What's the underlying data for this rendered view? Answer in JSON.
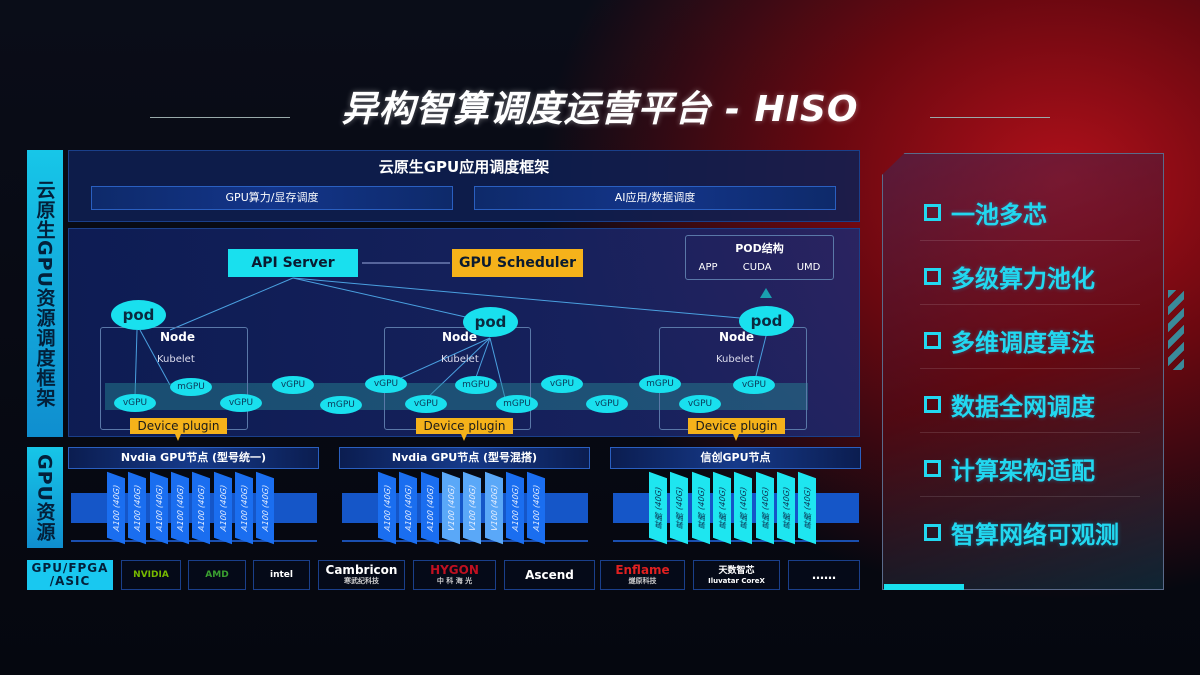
{
  "title": "异构智算调度运营平台 - HISO",
  "side_labels": {
    "framework": "云原生GPU资源调度框架",
    "resources": "GPU资源",
    "chips": "GPU/FPGA /ASIC"
  },
  "framework": {
    "title": "云原生GPU应用调度框架",
    "bars": [
      "GPU算力/显存调度",
      "AI应用/数据调度"
    ]
  },
  "diagram": {
    "api_server": "API Server",
    "gpu_scheduler": "GPU Scheduler",
    "pod_structure": {
      "title": "POD结构",
      "items": [
        "APP",
        "CUDA",
        "UMD"
      ]
    },
    "pod": "pod",
    "node": "Node",
    "kubelet": "Kubelet",
    "device_plugin": "Device plugin",
    "gpus": [
      "vGPU",
      "mGPU",
      "vGPU",
      "vGPU",
      "mGPU",
      "vGPU",
      "vGPU",
      "mGPU",
      "mGPU",
      "vGPU",
      "vGPU",
      "mGPU",
      "vGPU",
      "vGPU"
    ]
  },
  "gpu_nodes": [
    {
      "title": "Nvdia GPU节点 (型号统一)",
      "cards": [
        "A100 (40G)",
        "A100 (40G)",
        "A100 (40G)",
        "A100 (40G)",
        "A100 (40G)",
        "A100 (40G)",
        "A100 (40G)",
        "A100 (40G)"
      ],
      "card_color": "#1a6ef0"
    },
    {
      "title": "Nvdia GPU节点 (型号混搭)",
      "cards": [
        "A100 (40G)",
        "A100 (40G)",
        "A100 (40G)",
        "V100 (40G)",
        "V100 (40G)",
        "V100 (40G)",
        "A100 (40G)",
        "A100 (40G)"
      ],
      "card_color": "#1a6ef0",
      "alt_color": "#5aa8f8"
    },
    {
      "title": "信创GPU节点",
      "cards": [
        "昇腾 (40G)",
        "昇腾 (40G)",
        "昇腾 (40G)",
        "昇腾 (40G)",
        "昇腾 (40G)",
        "昇腾 (40G)",
        "昇腾 (40G)",
        "昇腾 (40G)"
      ],
      "card_color": "#1ee6f0"
    }
  ],
  "vendors": [
    {
      "name": "NVIDIA",
      "color": "#76b900"
    },
    {
      "name": "AMD",
      "color": "#3aa030"
    },
    {
      "name": "intel",
      "color": "#ffffff"
    },
    {
      "name": "Cambricon",
      "sub": "寒武纪科技",
      "color": "#ffffff"
    },
    {
      "name": "HYGON",
      "sub": "中 科 海 光",
      "color": "#c01020"
    },
    {
      "name": "Ascend",
      "color": "#ffffff"
    },
    {
      "name": "Enflame",
      "sub": "燧原科技",
      "color": "#e02020"
    },
    {
      "name": "天数智芯",
      "sub": "Iluvatar CoreX",
      "color": "#ffffff"
    },
    {
      "name": "……",
      "color": "#ffffff"
    }
  ],
  "features": [
    "一池多芯",
    "多级算力池化",
    "多维调度算法",
    "数据全网调度",
    "计算架构适配",
    "智算网络可观测"
  ]
}
